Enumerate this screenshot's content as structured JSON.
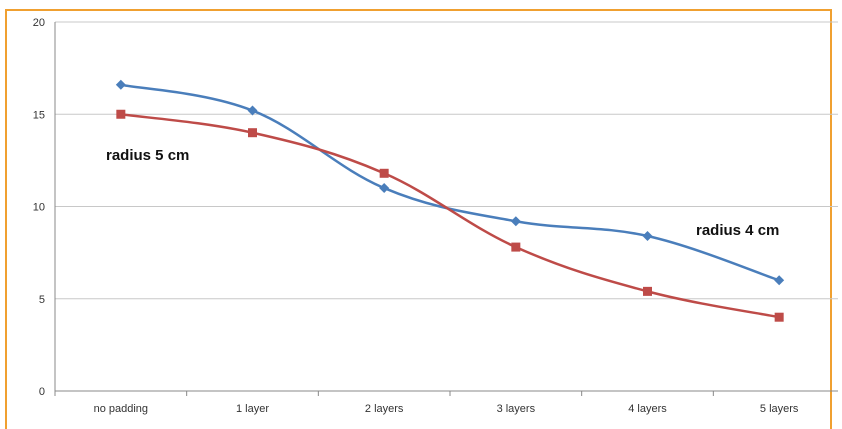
{
  "chart_data": {
    "type": "line",
    "categories": [
      "no padding",
      "1 layer",
      "2 layers",
      "3 layers",
      "4 layers",
      "5 layers"
    ],
    "ylim": [
      0,
      20
    ],
    "yticks": [
      0,
      5,
      10,
      15,
      20
    ],
    "grid": true,
    "legend": "none",
    "series": [
      {
        "name": "radius 4 cm",
        "values": [
          16.6,
          15.2,
          11.0,
          9.2,
          8.4,
          6.0
        ],
        "color": "#4a7ebb",
        "marker": "diamond"
      },
      {
        "name": "radius 5 cm",
        "values": [
          15.0,
          14.0,
          11.8,
          7.8,
          5.4,
          4.0
        ],
        "color": "#be4b48",
        "marker": "square"
      }
    ],
    "annotations": [
      {
        "text": "radius 5 cm",
        "series": 1
      },
      {
        "text": "radius 4 cm",
        "series": 0
      }
    ]
  },
  "frame_color": "#f0a030"
}
